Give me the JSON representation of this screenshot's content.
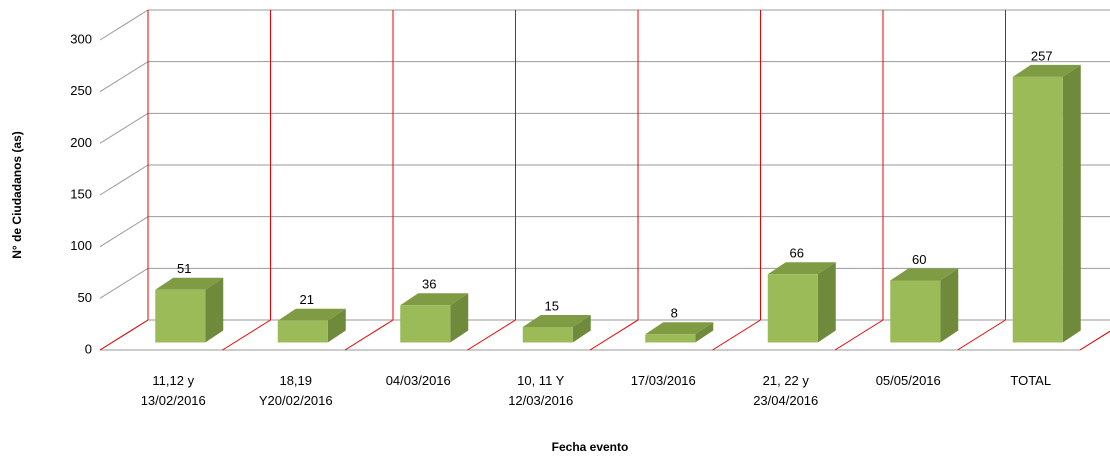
{
  "chart_data": {
    "type": "bar3d",
    "categories": [
      [
        "11,12 y",
        "13/02/2016"
      ],
      [
        "18,19",
        "Y20/02/2016"
      ],
      [
        "04/03/2016"
      ],
      [
        "10, 11 Y",
        "12/03/2016"
      ],
      [
        "17/03/2016"
      ],
      [
        "21, 22 y",
        "23/04/2016"
      ],
      [
        "05/05/2016"
      ],
      [
        "TOTAL"
      ]
    ],
    "values": [
      51,
      21,
      36,
      15,
      8,
      66,
      60,
      257
    ],
    "color": "#9bbb59",
    "xlabel": "Fecha evento",
    "ylabel": "N° de Ciudadanos  (as)",
    "ylim": [
      0,
      300
    ],
    "yticks": [
      0,
      50,
      100,
      150,
      200,
      250,
      300
    ],
    "grid": true
  }
}
